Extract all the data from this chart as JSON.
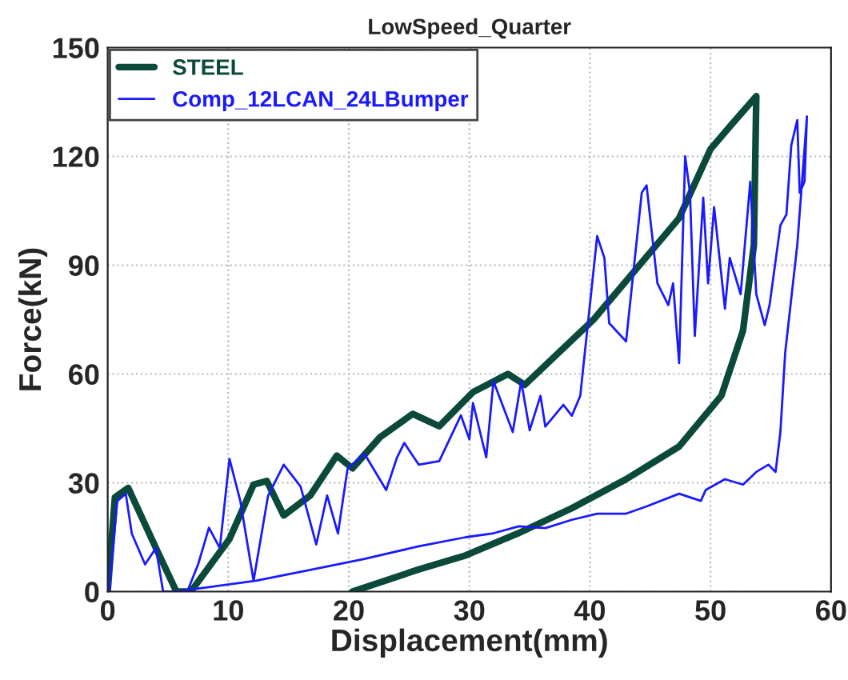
{
  "chart_data": {
    "type": "line",
    "title": "LowSpeed_Quarter",
    "xlabel": "Displacement(mm)",
    "ylabel": "Force(kN)",
    "xlim": [
      0,
      60
    ],
    "ylim": [
      0,
      150
    ],
    "xticks": [
      0,
      10,
      20,
      30,
      40,
      50,
      60
    ],
    "yticks": [
      0,
      30,
      60,
      90,
      120,
      150
    ],
    "grid": true,
    "legend": "top left",
    "series": [
      {
        "name": "STEEL",
        "color": "#0b4a3a",
        "x": [
          0,
          0.6,
          1.7,
          4,
          5.7,
          6.9,
          10.1,
          12.1,
          13.2,
          14.6,
          16.8,
          19,
          20.3,
          22.6,
          25.3,
          27.5,
          30.3,
          33.2,
          34.6,
          40.3,
          47.4,
          50,
          51.8,
          53.8,
          53.6,
          52.7,
          50.9,
          47.4,
          43,
          38.5,
          34,
          29.7,
          25.7,
          20.3
        ],
        "values": [
          0,
          26,
          28.6,
          12,
          0,
          0,
          14.5,
          29.5,
          30.5,
          21,
          26.5,
          37.5,
          34,
          42.6,
          49,
          45.6,
          55,
          60,
          57,
          75,
          103,
          122,
          129,
          136.6,
          95.6,
          72,
          54,
          40,
          31,
          23,
          16,
          10,
          6,
          0
        ]
      },
      {
        "name": "Comp_12LCAN_24LBumper",
        "color": "#1a1aff",
        "x": [
          0.1,
          0.8,
          1.5,
          2,
          3.1,
          4,
          4.6,
          6.6,
          7.5,
          8.4,
          9.3,
          10.1,
          11,
          12.1,
          13.3,
          14.6,
          16,
          17.3,
          18.2,
          19.1,
          19.9,
          21.3,
          23.1,
          24,
          24.6,
          25.8,
          27.5,
          29.3,
          30,
          30.3,
          31.4,
          32,
          33.6,
          34.3,
          35,
          35.9,
          36.3,
          37.8,
          38.5,
          39.2,
          40.6,
          41.2,
          41.6,
          43,
          44.3,
          44.7,
          45.6,
          46.5,
          46.9,
          47.4,
          47.9,
          48.3,
          48.7,
          49.4,
          49.8,
          50.3,
          51.2,
          51.6,
          52.5,
          53.3,
          53.8,
          54.5,
          54.9,
          55.8,
          56.3,
          56.7,
          57.2,
          57.4,
          57.8,
          58,
          57.2,
          56.2,
          55.8,
          55.4,
          54.8,
          53.8,
          52.7,
          51.2,
          49.6,
          49.2,
          47.4,
          44.7,
          43,
          40.6,
          38.5,
          36.3,
          34.1,
          31.9,
          29.7,
          25.8,
          21.3,
          16.8,
          12.3,
          7.9,
          5.7
        ],
        "values": [
          0,
          25,
          27,
          16,
          7.5,
          12,
          0,
          0,
          7.5,
          17.6,
          12,
          36.6,
          25,
          3,
          26.4,
          35,
          29,
          13,
          26.5,
          16,
          34,
          38,
          28,
          37,
          41,
          35,
          36,
          48.6,
          42,
          52,
          37,
          58,
          44,
          58,
          44.5,
          54,
          45.5,
          51.5,
          48.5,
          54,
          98,
          92,
          74,
          69,
          110,
          112,
          85,
          79,
          85,
          63,
          120,
          110,
          70.5,
          108.6,
          85,
          106,
          78,
          92,
          82,
          113,
          82,
          73.5,
          79,
          101,
          104,
          123,
          130,
          110,
          113,
          131,
          95.6,
          66,
          44,
          33,
          35,
          33,
          29.5,
          31,
          28,
          25,
          27,
          23.5,
          21.5,
          21.5,
          19.8,
          17.5,
          18,
          16,
          15,
          12.5,
          9,
          6,
          3,
          1,
          0
        ]
      }
    ]
  }
}
